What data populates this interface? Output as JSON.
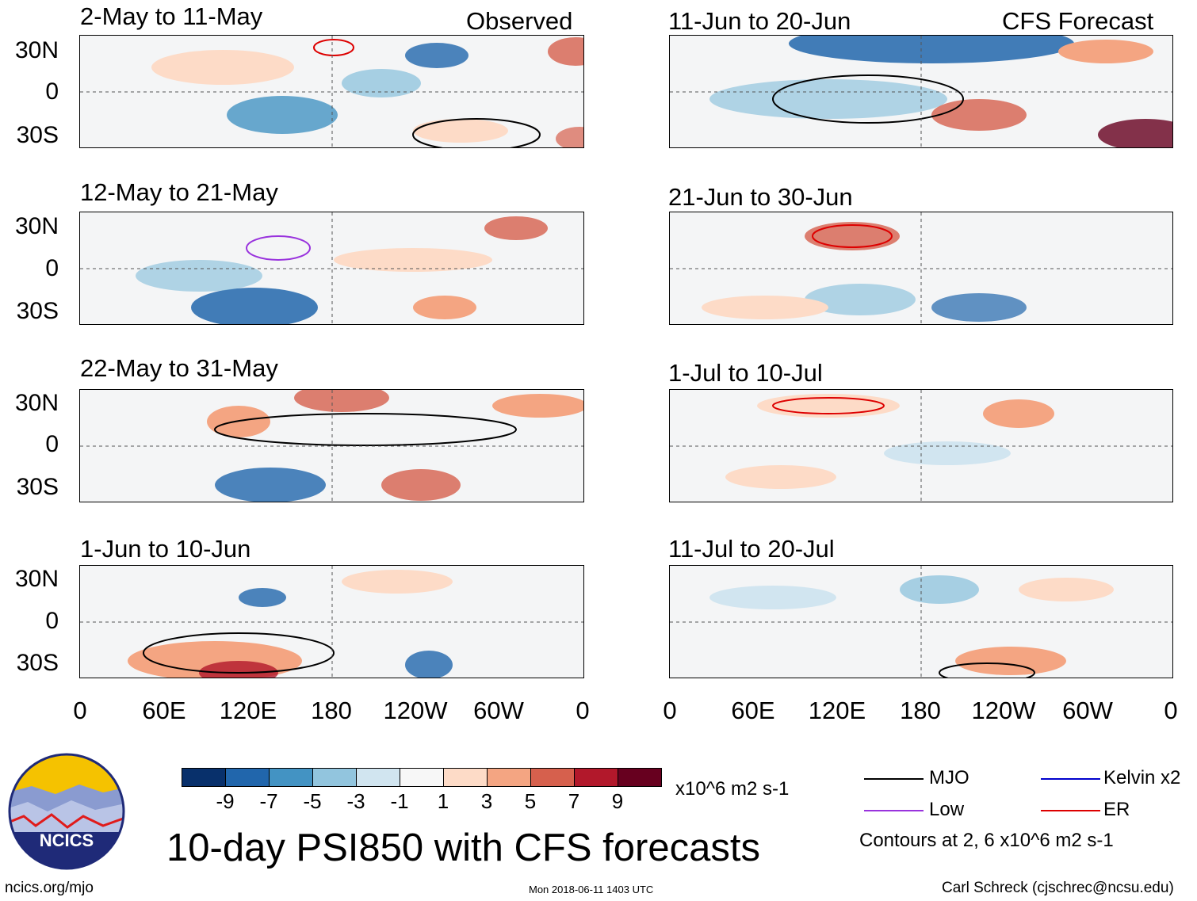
{
  "chart_data": {
    "type": "heatmap",
    "title": "10-day PSI850 with CFS forecasts",
    "variable": "PSI850 anomaly",
    "units": "x10^6 m2 s-1",
    "column_headers": [
      "Observed",
      "CFS Forecast"
    ],
    "panels": [
      {
        "column": "observed",
        "period": "2-May to 11-May"
      },
      {
        "column": "observed",
        "period": "12-May to 21-May"
      },
      {
        "column": "observed",
        "period": "22-May to 31-May"
      },
      {
        "column": "observed",
        "period": "1-Jun to 10-Jun"
      },
      {
        "column": "forecast",
        "period": "11-Jun to 20-Jun"
      },
      {
        "column": "forecast",
        "period": "21-Jun to 30-Jun"
      },
      {
        "column": "forecast",
        "period": "1-Jul to 10-Jul"
      },
      {
        "column": "forecast",
        "period": "11-Jul to 20-Jul"
      }
    ],
    "y_ticks": [
      "30N",
      "0",
      "30S"
    ],
    "x_ticks": [
      "0",
      "60E",
      "120E",
      "180",
      "120W",
      "60W",
      "0"
    ],
    "colorbar": {
      "labels": [
        "-9",
        "-7",
        "-5",
        "-3",
        "-1",
        "1",
        "3",
        "5",
        "7",
        "9"
      ],
      "colors": [
        "#08306b",
        "#2166ac",
        "#4393c3",
        "#92c5de",
        "#d1e5f0",
        "#f7f7f7",
        "#fddbc7",
        "#f4a582",
        "#d6604d",
        "#b2182b",
        "#67001f"
      ]
    },
    "legend": [
      {
        "label": "MJO",
        "color": "#000000"
      },
      {
        "label": "Kelvin x2",
        "color": "#0000cc"
      },
      {
        "label": "Low",
        "color": "#9933dd"
      },
      {
        "label": "ER",
        "color": "#dd0000"
      }
    ],
    "contour_note": "Contours at 2, 6 x10^6 m2 s-1"
  },
  "footer": {
    "logo_text": "NCICS",
    "url": "ncics.org/mjo",
    "timestamp": "Mon 2018-06-11 1403 UTC",
    "credit": "Carl Schreck (cjschrec@ncsu.edu)"
  }
}
